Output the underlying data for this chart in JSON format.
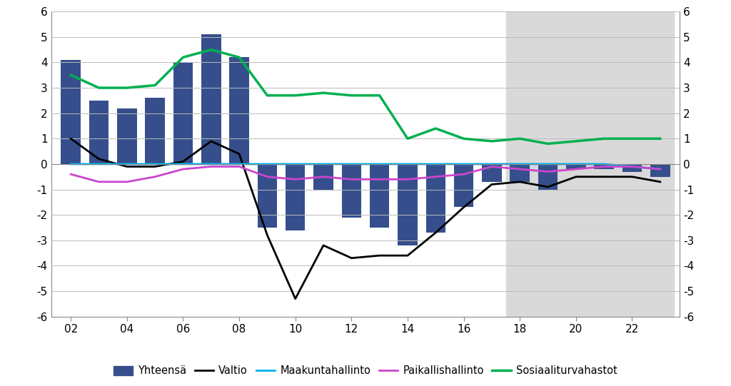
{
  "years": [
    2002,
    2003,
    2004,
    2005,
    2006,
    2007,
    2008,
    2009,
    2010,
    2011,
    2012,
    2013,
    2014,
    2015,
    2016,
    2017,
    2018,
    2019,
    2020,
    2021,
    2022,
    2023
  ],
  "bar_values": [
    4.1,
    2.5,
    2.2,
    2.6,
    4.0,
    5.1,
    4.2,
    -2.5,
    -2.6,
    -1.0,
    -2.1,
    -2.5,
    -3.2,
    -2.7,
    -1.7,
    -0.7,
    -0.7,
    -1.0,
    -0.2,
    -0.2,
    -0.3,
    -0.5
  ],
  "valtio": [
    1.0,
    0.2,
    -0.1,
    -0.1,
    0.1,
    0.9,
    0.4,
    -2.8,
    -5.3,
    -3.2,
    -3.7,
    -3.6,
    -3.6,
    -2.7,
    -1.7,
    -0.8,
    -0.7,
    -0.9,
    -0.5,
    -0.5,
    -0.5,
    -0.7
  ],
  "maakuntahallinto": [
    0.0,
    0.0,
    0.0,
    0.0,
    0.0,
    0.0,
    0.0,
    0.0,
    0.0,
    0.0,
    0.0,
    0.0,
    0.0,
    0.0,
    0.0,
    0.0,
    0.0,
    0.0,
    0.0,
    0.0,
    -0.1,
    -0.2
  ],
  "paikallishallinto": [
    -0.4,
    -0.7,
    -0.7,
    -0.5,
    -0.2,
    -0.1,
    -0.1,
    -0.5,
    -0.6,
    -0.5,
    -0.6,
    -0.6,
    -0.6,
    -0.5,
    -0.4,
    -0.1,
    -0.2,
    -0.3,
    -0.2,
    -0.1,
    -0.1,
    -0.2
  ],
  "sosiaaliturvahastot": [
    3.5,
    3.0,
    3.0,
    3.1,
    4.2,
    4.5,
    4.2,
    2.7,
    2.7,
    2.8,
    2.7,
    2.7,
    1.0,
    1.4,
    1.0,
    0.9,
    1.0,
    0.8,
    0.9,
    1.0,
    1.0,
    1.0
  ],
  "bar_color": "#364f8c",
  "valtio_color": "#000000",
  "maakuntahallinto_color": "#00b0f0",
  "paikallishallinto_color": "#cc44cc",
  "sosiaaliturvahastot_color": "#00b050",
  "shade_start_x": 2017.5,
  "shade_end_x": 2023.5,
  "shade_color": "#d9d9d9",
  "ylim": [
    -6,
    6
  ],
  "yticks": [
    -6,
    -5,
    -4,
    -3,
    -2,
    -1,
    0,
    1,
    2,
    3,
    4,
    5,
    6
  ],
  "xtick_years": [
    2002,
    2004,
    2006,
    2008,
    2010,
    2012,
    2014,
    2016,
    2018,
    2020,
    2022
  ],
  "xtick_labels": [
    "02",
    "04",
    "06",
    "08",
    "10",
    "12",
    "14",
    "16",
    "18",
    "20",
    "22"
  ],
  "xlim": [
    2001.3,
    2023.7
  ],
  "legend_labels": [
    "Yhteensä",
    "Valtio",
    "Maakuntahallinto",
    "Paikallishallinto",
    "Sosiaaliturvahastot"
  ],
  "background_color": "#ffffff",
  "grid_color": "#bbbbbb",
  "bar_width": 0.7
}
